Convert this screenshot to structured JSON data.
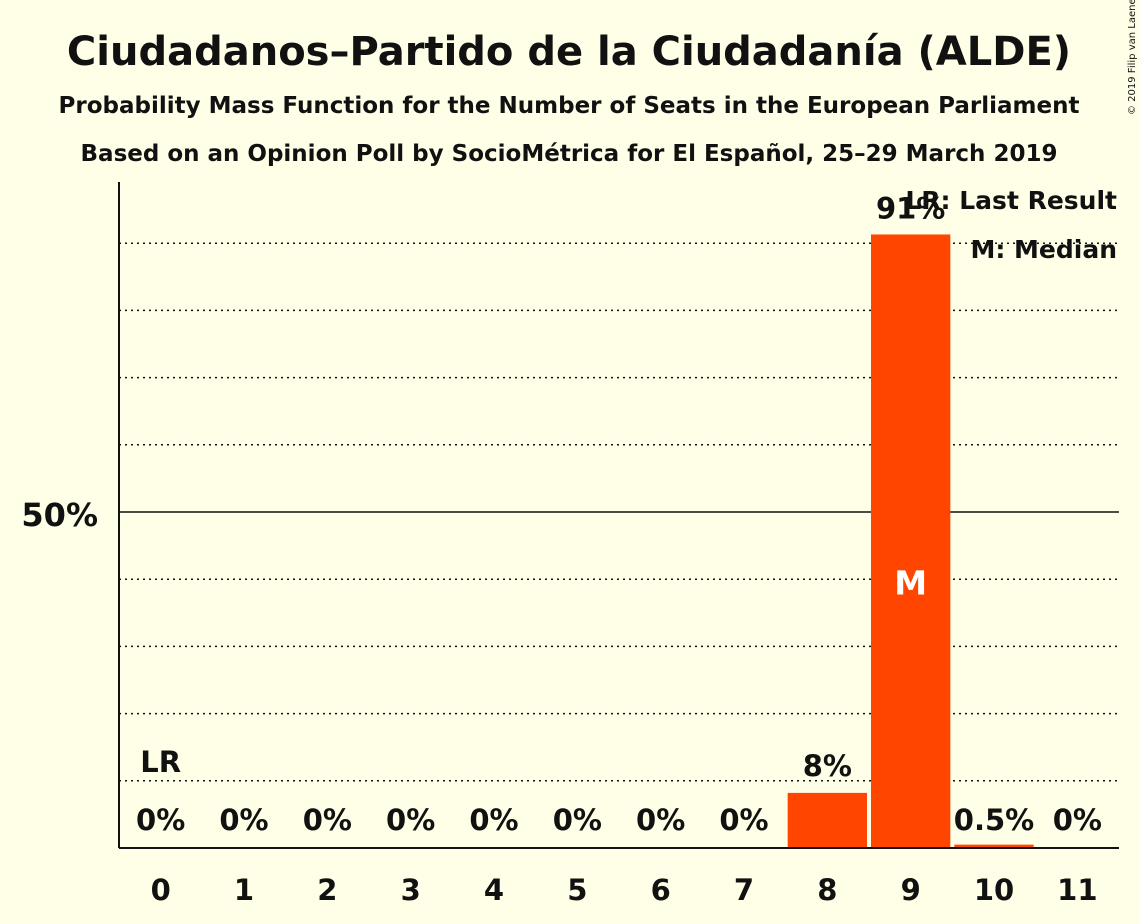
{
  "chart_data": {
    "type": "bar",
    "title": "Ciudadanos–Partido de la Ciudadanía (ALDE)",
    "subtitle": "Probability Mass Function for the Number of Seats in the European Parliament",
    "subtitle2": "Based on an Opinion Poll by SocioMétrica for El Español, 25–29 March 2019",
    "copyright": "© 2019 Filip van Laenen",
    "categories": [
      "0",
      "1",
      "2",
      "3",
      "4",
      "5",
      "6",
      "7",
      "8",
      "9",
      "10",
      "11"
    ],
    "values": [
      0,
      0,
      0,
      0,
      0,
      0,
      0,
      0,
      8.2,
      91.3,
      0.5,
      0
    ],
    "value_labels": [
      "0%",
      "0%",
      "0%",
      "0%",
      "0%",
      "0%",
      "0%",
      "0%",
      "8%",
      "91%",
      "0.5%",
      "0%"
    ],
    "ytick_label": "50%",
    "ylim": [
      0,
      100
    ],
    "last_result_index": 0,
    "last_result_label": "LR",
    "median_index": 9,
    "median_label": "M",
    "legend": [
      "LR: Last Result",
      "M: Median"
    ],
    "bar_color": "#FF4500",
    "background": "#FFFEE6",
    "grid": "dotted every 10%"
  }
}
